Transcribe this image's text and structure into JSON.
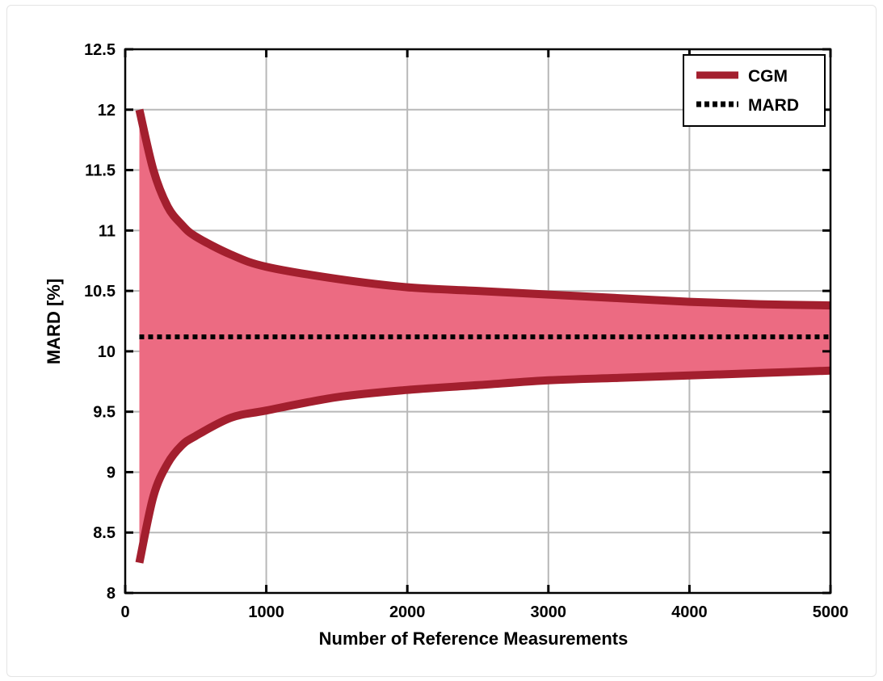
{
  "chart_data": {
    "type": "line",
    "title": "",
    "xlabel": "Number of Reference Measurements",
    "ylabel": "MARD [%]",
    "xlim": [
      0,
      5000
    ],
    "ylim": [
      8,
      12.5
    ],
    "xticks": [
      0,
      1000,
      2000,
      3000,
      4000,
      5000
    ],
    "xtick_labels": [
      "0",
      "1000",
      "2000",
      "3000",
      "4000",
      "5000"
    ],
    "yticks": [
      8,
      8.5,
      9,
      9.5,
      10,
      10.5,
      11,
      11.5,
      12,
      12.5
    ],
    "ytick_labels": [
      "8",
      "8.5",
      "9",
      "9.5",
      "10",
      "10.5",
      "11",
      "11.5",
      "12",
      "12.5"
    ],
    "grid": true,
    "legend_position": "top-right",
    "colors": {
      "cgm_line": "#a31f2e",
      "cgm_fill": "#ec6b82",
      "mard_line": "#000000",
      "grid": "#b8b8b8"
    },
    "series": [
      {
        "name": "CGM",
        "band": true,
        "x": [
          100,
          200,
          300,
          400,
          500,
          750,
          1000,
          1500,
          2000,
          2500,
          3000,
          3500,
          4000,
          4500,
          5000
        ],
        "upper": [
          12.0,
          11.5,
          11.2,
          11.05,
          10.95,
          10.8,
          10.7,
          10.6,
          10.53,
          10.5,
          10.47,
          10.44,
          10.41,
          10.39,
          10.38
        ],
        "lower": [
          8.25,
          8.8,
          9.07,
          9.22,
          9.3,
          9.45,
          9.51,
          9.62,
          9.68,
          9.72,
          9.76,
          9.78,
          9.8,
          9.82,
          9.84
        ]
      },
      {
        "name": "MARD",
        "x": [
          100,
          5000
        ],
        "values": [
          10.12,
          10.12
        ]
      }
    ]
  }
}
